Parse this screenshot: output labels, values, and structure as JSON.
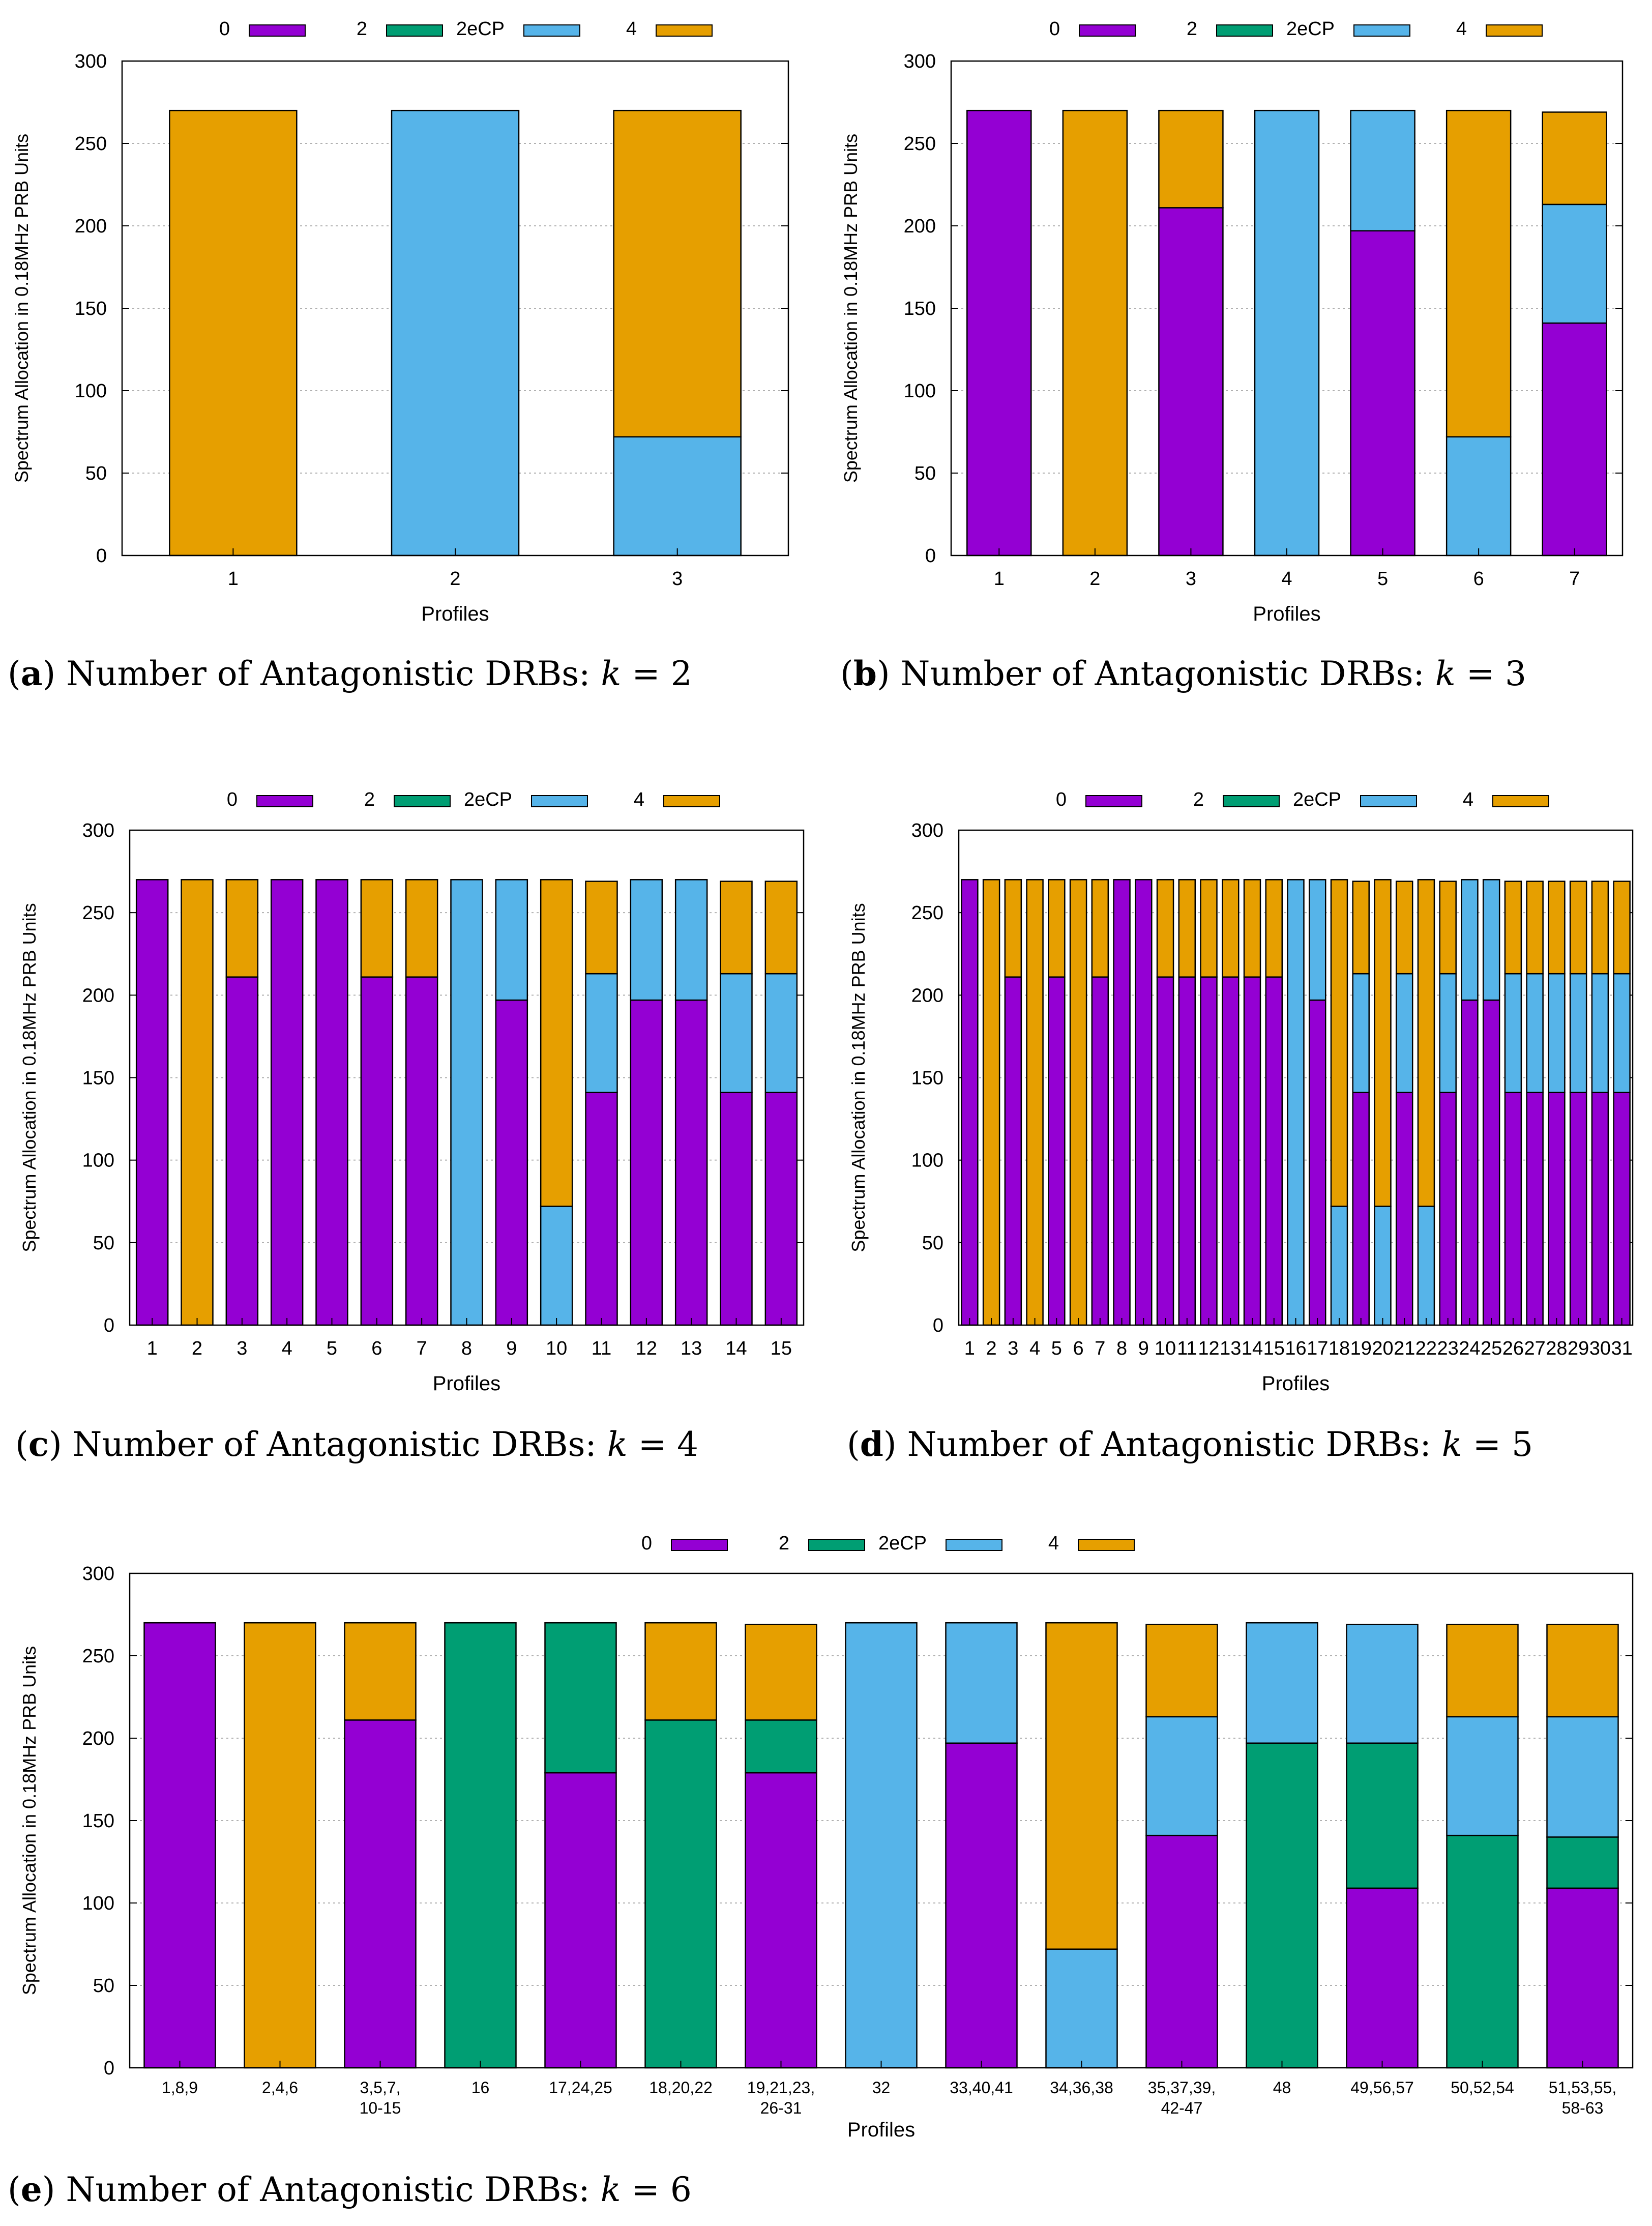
{
  "colors": {
    "0": "#9400d3",
    "2": "#009e73",
    "2eCP": "#56b4e9",
    "4": "#e69f00"
  },
  "legend": [
    "0",
    "2",
    "2eCP",
    "4"
  ],
  "captions": [
    {
      "letter": "a",
      "text": " Number of Antagonistic DRBs: ",
      "var": "k",
      "eq": " = 2"
    },
    {
      "letter": "b",
      "text": " Number of Antagonistic DRBs: ",
      "var": "k",
      "eq": " = 3"
    },
    {
      "letter": "c",
      "text": " Number of Antagonistic DRBs: ",
      "var": "k",
      "eq": " = 4"
    },
    {
      "letter": "d",
      "text": " Number of Antagonistic DRBs: ",
      "var": "k",
      "eq": " = 5"
    },
    {
      "letter": "e",
      "text": " Number of Antagonistic DRBs: ",
      "var": "k",
      "eq": " = 6"
    }
  ],
  "chart_data": [
    {
      "type": "bar",
      "stacked": true,
      "id": "a",
      "xlabel": "Profiles",
      "ylabel": "Spectrum Allocation in 0.18MHz PRB Units",
      "ylim": [
        0,
        300
      ],
      "yticks": [
        0,
        50,
        100,
        150,
        200,
        250,
        300
      ],
      "categories": [
        "1",
        "2",
        "3"
      ],
      "stacks": [
        [
          [
            "4",
            270
          ]
        ],
        [
          [
            "2eCP",
            270
          ]
        ],
        [
          [
            "2eCP",
            72
          ],
          [
            "4",
            198
          ]
        ]
      ]
    },
    {
      "type": "bar",
      "stacked": true,
      "id": "b",
      "xlabel": "Profiles",
      "ylabel": "Spectrum Allocation in 0.18MHz PRB Units",
      "ylim": [
        0,
        300
      ],
      "yticks": [
        0,
        50,
        100,
        150,
        200,
        250,
        300
      ],
      "categories": [
        "1",
        "2",
        "3",
        "4",
        "5",
        "6",
        "7"
      ],
      "stacks": [
        [
          [
            "0",
            270
          ]
        ],
        [
          [
            "4",
            270
          ]
        ],
        [
          [
            "0",
            211
          ],
          [
            "4",
            59
          ]
        ],
        [
          [
            "2eCP",
            270
          ]
        ],
        [
          [
            "0",
            197
          ],
          [
            "2eCP",
            73
          ]
        ],
        [
          [
            "2eCP",
            72
          ],
          [
            "4",
            198
          ]
        ],
        [
          [
            "0",
            141
          ],
          [
            "2eCP",
            72
          ],
          [
            "4",
            56
          ]
        ]
      ]
    },
    {
      "type": "bar",
      "stacked": true,
      "id": "c",
      "xlabel": "Profiles",
      "ylabel": "Spectrum Allocation in 0.18MHz PRB Units",
      "ylim": [
        0,
        300
      ],
      "yticks": [
        0,
        50,
        100,
        150,
        200,
        250,
        300
      ],
      "categories": [
        "1",
        "2",
        "3",
        "4",
        "5",
        "6",
        "7",
        "8",
        "9",
        "10",
        "11",
        "12",
        "13",
        "14",
        "15"
      ],
      "stacks": [
        [
          [
            "0",
            270
          ]
        ],
        [
          [
            "4",
            270
          ]
        ],
        [
          [
            "0",
            211
          ],
          [
            "4",
            59
          ]
        ],
        [
          [
            "0",
            270
          ]
        ],
        [
          [
            "0",
            270
          ]
        ],
        [
          [
            "0",
            211
          ],
          [
            "4",
            59
          ]
        ],
        [
          [
            "0",
            211
          ],
          [
            "4",
            59
          ]
        ],
        [
          [
            "2eCP",
            270
          ]
        ],
        [
          [
            "0",
            197
          ],
          [
            "2eCP",
            73
          ]
        ],
        [
          [
            "2eCP",
            72
          ],
          [
            "4",
            198
          ]
        ],
        [
          [
            "0",
            141
          ],
          [
            "2eCP",
            72
          ],
          [
            "4",
            56
          ]
        ],
        [
          [
            "0",
            197
          ],
          [
            "2eCP",
            73
          ]
        ],
        [
          [
            "0",
            197
          ],
          [
            "2eCP",
            73
          ]
        ],
        [
          [
            "0",
            141
          ],
          [
            "2eCP",
            72
          ],
          [
            "4",
            56
          ]
        ],
        [
          [
            "0",
            141
          ],
          [
            "2eCP",
            72
          ],
          [
            "4",
            56
          ]
        ]
      ]
    },
    {
      "type": "bar",
      "stacked": true,
      "id": "d",
      "xlabel": "Profiles",
      "ylabel": "Spectrum Allocation in 0.18MHz PRB Units",
      "ylim": [
        0,
        300
      ],
      "yticks": [
        0,
        50,
        100,
        150,
        200,
        250,
        300
      ],
      "categories": [
        "1",
        "2",
        "3",
        "4",
        "5",
        "6",
        "7",
        "8",
        "9",
        "10",
        "11",
        "12",
        "13",
        "14",
        "15",
        "16",
        "17",
        "18",
        "19",
        "20",
        "21",
        "22",
        "23",
        "24",
        "25",
        "26",
        "27",
        "28",
        "29",
        "30",
        "31"
      ],
      "stacks": [
        [
          [
            "0",
            270
          ]
        ],
        [
          [
            "4",
            270
          ]
        ],
        [
          [
            "0",
            211
          ],
          [
            "4",
            59
          ]
        ],
        [
          [
            "4",
            270
          ]
        ],
        [
          [
            "0",
            211
          ],
          [
            "4",
            59
          ]
        ],
        [
          [
            "4",
            270
          ]
        ],
        [
          [
            "0",
            211
          ],
          [
            "4",
            59
          ]
        ],
        [
          [
            "0",
            270
          ]
        ],
        [
          [
            "0",
            270
          ]
        ],
        [
          [
            "0",
            211
          ],
          [
            "4",
            59
          ]
        ],
        [
          [
            "0",
            211
          ],
          [
            "4",
            59
          ]
        ],
        [
          [
            "0",
            211
          ],
          [
            "4",
            59
          ]
        ],
        [
          [
            "0",
            211
          ],
          [
            "4",
            59
          ]
        ],
        [
          [
            "0",
            211
          ],
          [
            "4",
            59
          ]
        ],
        [
          [
            "0",
            211
          ],
          [
            "4",
            59
          ]
        ],
        [
          [
            "2eCP",
            270
          ]
        ],
        [
          [
            "0",
            197
          ],
          [
            "2eCP",
            73
          ]
        ],
        [
          [
            "2eCP",
            72
          ],
          [
            "4",
            198
          ]
        ],
        [
          [
            "0",
            141
          ],
          [
            "2eCP",
            72
          ],
          [
            "4",
            56
          ]
        ],
        [
          [
            "2eCP",
            72
          ],
          [
            "4",
            198
          ]
        ],
        [
          [
            "0",
            141
          ],
          [
            "2eCP",
            72
          ],
          [
            "4",
            56
          ]
        ],
        [
          [
            "2eCP",
            72
          ],
          [
            "4",
            198
          ]
        ],
        [
          [
            "0",
            141
          ],
          [
            "2eCP",
            72
          ],
          [
            "4",
            56
          ]
        ],
        [
          [
            "0",
            197
          ],
          [
            "2eCP",
            73
          ]
        ],
        [
          [
            "0",
            197
          ],
          [
            "2eCP",
            73
          ]
        ],
        [
          [
            "0",
            141
          ],
          [
            "2eCP",
            72
          ],
          [
            "4",
            56
          ]
        ],
        [
          [
            "0",
            141
          ],
          [
            "2eCP",
            72
          ],
          [
            "4",
            56
          ]
        ],
        [
          [
            "0",
            141
          ],
          [
            "2eCP",
            72
          ],
          [
            "4",
            56
          ]
        ],
        [
          [
            "0",
            141
          ],
          [
            "2eCP",
            72
          ],
          [
            "4",
            56
          ]
        ],
        [
          [
            "0",
            141
          ],
          [
            "2eCP",
            72
          ],
          [
            "4",
            56
          ]
        ],
        [
          [
            "0",
            141
          ],
          [
            "2eCP",
            72
          ],
          [
            "4",
            56
          ]
        ]
      ]
    },
    {
      "type": "bar",
      "stacked": true,
      "id": "e",
      "xlabel": "Profiles",
      "ylabel": "Spectrum Allocation in 0.18MHz PRB Units",
      "ylim": [
        0,
        300
      ],
      "yticks": [
        0,
        50,
        100,
        150,
        200,
        250,
        300
      ],
      "categories": [
        [
          "1,8,9"
        ],
        [
          "2,4,6"
        ],
        [
          "3,5,7,",
          "10-15"
        ],
        [
          "16"
        ],
        [
          "17,24,25"
        ],
        [
          "18,20,22"
        ],
        [
          "19,21,23,",
          "26-31"
        ],
        [
          "32"
        ],
        [
          "33,40,41"
        ],
        [
          "34,36,38"
        ],
        [
          "35,37,39,",
          "42-47"
        ],
        [
          "48"
        ],
        [
          "49,56,57"
        ],
        [
          "50,52,54"
        ],
        [
          "51,53,55,",
          "58-63"
        ]
      ],
      "stacks": [
        [
          [
            "0",
            270
          ]
        ],
        [
          [
            "4",
            270
          ]
        ],
        [
          [
            "0",
            211
          ],
          [
            "4",
            59
          ]
        ],
        [
          [
            "2",
            270
          ]
        ],
        [
          [
            "0",
            179
          ],
          [
            "2",
            91
          ]
        ],
        [
          [
            "2",
            211
          ],
          [
            "4",
            59
          ]
        ],
        [
          [
            "0",
            179
          ],
          [
            "2",
            32
          ],
          [
            "4",
            58
          ]
        ],
        [
          [
            "2eCP",
            270
          ]
        ],
        [
          [
            "0",
            197
          ],
          [
            "2eCP",
            73
          ]
        ],
        [
          [
            "2eCP",
            72
          ],
          [
            "4",
            198
          ]
        ],
        [
          [
            "0",
            141
          ],
          [
            "2eCP",
            72
          ],
          [
            "4",
            56
          ]
        ],
        [
          [
            "2",
            197
          ],
          [
            "2eCP",
            73
          ]
        ],
        [
          [
            "0",
            109
          ],
          [
            "2",
            88
          ],
          [
            "2eCP",
            72
          ]
        ],
        [
          [
            "2",
            141
          ],
          [
            "2eCP",
            72
          ],
          [
            "4",
            56
          ]
        ],
        [
          [
            "0",
            109
          ],
          [
            "2",
            31
          ],
          [
            "2eCP",
            73
          ],
          [
            "4",
            56
          ]
        ]
      ]
    }
  ]
}
